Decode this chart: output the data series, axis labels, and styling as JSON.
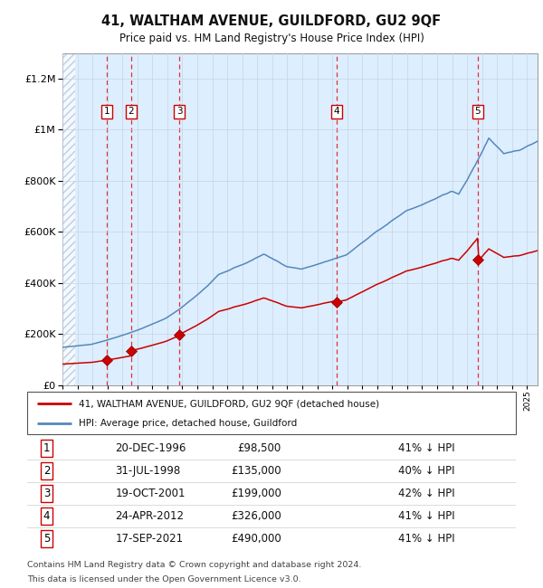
{
  "title": "41, WALTHAM AVENUE, GUILDFORD, GU2 9QF",
  "subtitle": "Price paid vs. HM Land Registry's House Price Index (HPI)",
  "sales": [
    {
      "label": "1",
      "date": "20-DEC-1996",
      "year": 1996.97,
      "price": 98500,
      "pct": "41% ↓ HPI"
    },
    {
      "label": "2",
      "date": "31-JUL-1998",
      "year": 1998.58,
      "price": 135000,
      "pct": "40% ↓ HPI"
    },
    {
      "label": "3",
      "date": "19-OCT-2001",
      "year": 2001.8,
      "price": 199000,
      "pct": "42% ↓ HPI"
    },
    {
      "label": "4",
      "date": "24-APR-2012",
      "year": 2012.31,
      "price": 326000,
      "pct": "41% ↓ HPI"
    },
    {
      "label": "5",
      "date": "17-SEP-2021",
      "year": 2021.71,
      "price": 490000,
      "pct": "41% ↓ HPI"
    }
  ],
  "legend_property": "41, WALTHAM AVENUE, GUILDFORD, GU2 9QF (detached house)",
  "legend_hpi": "HPI: Average price, detached house, Guildford",
  "footnote1": "Contains HM Land Registry data © Crown copyright and database right 2024.",
  "footnote2": "This data is licensed under the Open Government Licence v3.0.",
  "property_color": "#cc0000",
  "hpi_color": "#5588bb",
  "background_color": "#ddeeff",
  "ylim_max": 1300000,
  "xlim_start": 1994.0,
  "xlim_end": 2025.7
}
